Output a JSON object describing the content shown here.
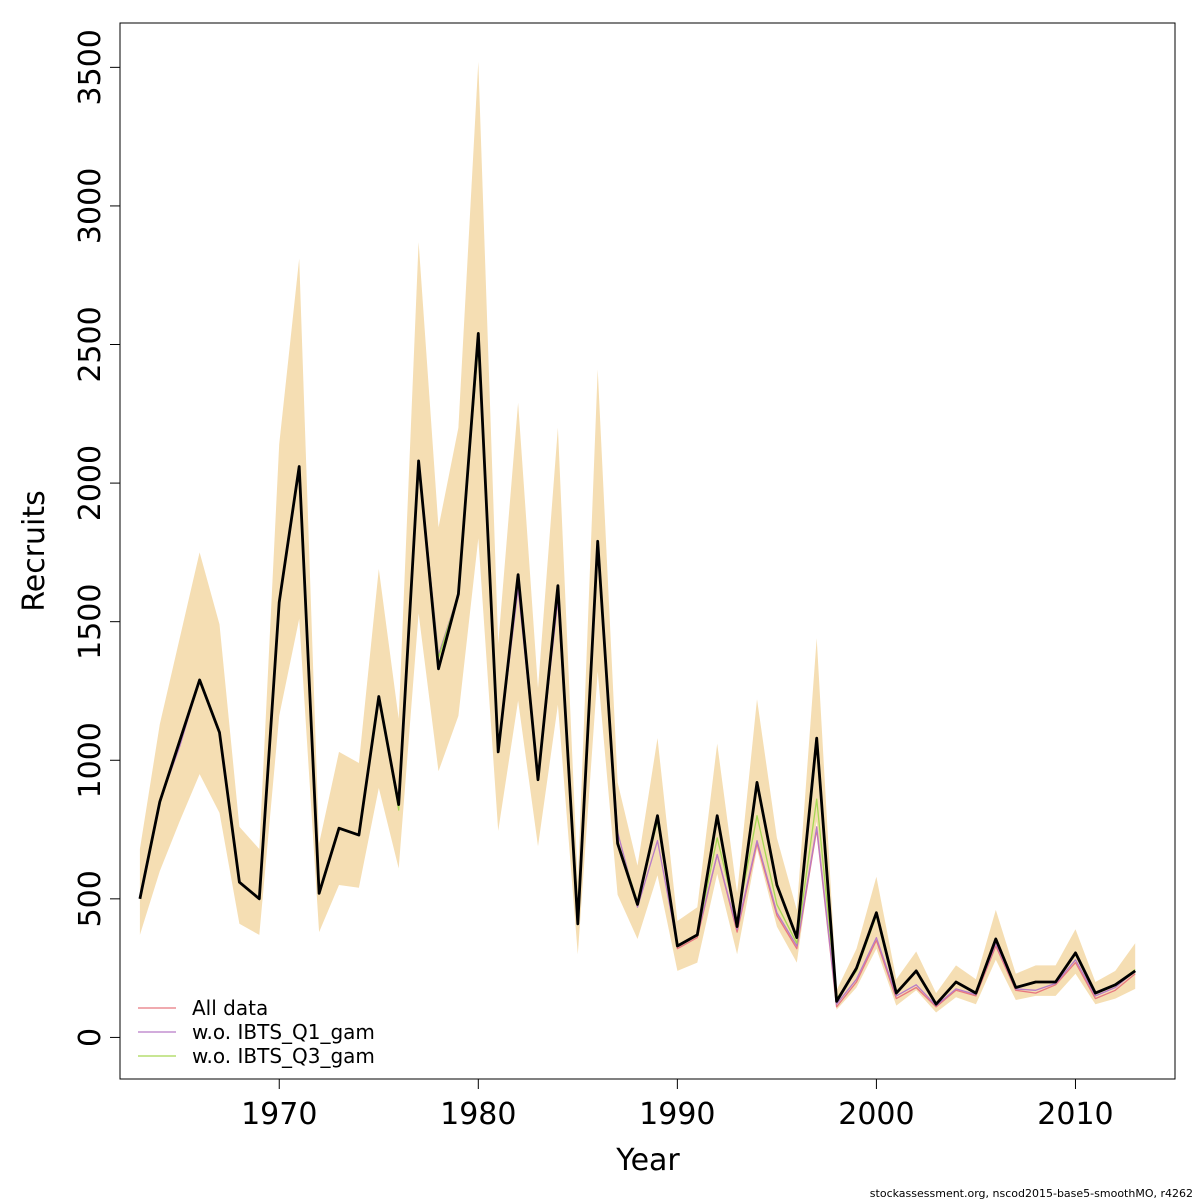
{
  "chart_data": {
    "type": "line",
    "xlabel": "Year",
    "ylabel": "Recruits",
    "xlim": [
      1962,
      2015
    ],
    "ylim": [
      -150,
      3660
    ],
    "x_ticks": [
      1970,
      1980,
      1990,
      2000,
      2010
    ],
    "y_ticks": [
      0,
      500,
      1000,
      1500,
      2000,
      2500,
      3000,
      3500
    ],
    "x": [
      1963,
      1964,
      1965,
      1966,
      1967,
      1968,
      1969,
      1970,
      1971,
      1972,
      1973,
      1974,
      1975,
      1976,
      1977,
      1978,
      1979,
      1980,
      1981,
      1982,
      1983,
      1984,
      1985,
      1986,
      1987,
      1988,
      1989,
      1990,
      1991,
      1992,
      1993,
      1994,
      1995,
      1996,
      1997,
      1998,
      1999,
      2000,
      2001,
      2002,
      2003,
      2004,
      2005,
      2006,
      2007,
      2008,
      2009,
      2010,
      2011,
      2012,
      2013
    ],
    "series": [
      {
        "name": "All data",
        "color": "#e8777f",
        "values": [
          500,
          850,
          1070,
          1290,
          1100,
          560,
          500,
          1570,
          2060,
          520,
          755,
          730,
          1230,
          840,
          2080,
          1330,
          1600,
          2540,
          1030,
          1670,
          930,
          1630,
          410,
          1790,
          710,
          480,
          800,
          320,
          360,
          660,
          380,
          700,
          440,
          320,
          750,
          110,
          200,
          350,
          140,
          180,
          110,
          170,
          150,
          330,
          170,
          160,
          190,
          270,
          140,
          170,
          230
        ]
      },
      {
        "name": "w.o. IBTS_Q1_gam",
        "color": "#b77bc7",
        "values": [
          500,
          850,
          1050,
          1290,
          1100,
          560,
          500,
          1570,
          2060,
          520,
          755,
          730,
          1230,
          840,
          2080,
          1380,
          1600,
          2540,
          1030,
          1620,
          930,
          1580,
          420,
          1760,
          740,
          470,
          710,
          330,
          370,
          660,
          390,
          710,
          450,
          330,
          760,
          120,
          210,
          360,
          150,
          190,
          115,
          175,
          155,
          340,
          175,
          170,
          195,
          280,
          150,
          180,
          240
        ]
      },
      {
        "name": "w.o. IBTS_Q3_gam",
        "color": "#a6d854",
        "values": [
          500,
          850,
          1070,
          1290,
          1100,
          560,
          500,
          1570,
          2060,
          520,
          755,
          730,
          1230,
          820,
          2080,
          1370,
          1600,
          2500,
          1030,
          1670,
          930,
          1620,
          450,
          1790,
          710,
          490,
          780,
          330,
          370,
          720,
          420,
          800,
          480,
          340,
          860,
          140,
          240,
          440,
          160,
          240,
          120,
          200,
          160,
          350,
          180,
          200,
          200,
          305,
          160,
          190,
          245
        ]
      },
      {
        "name": "",
        "color": "#000000",
        "values": [
          500,
          850,
          1070,
          1290,
          1100,
          560,
          500,
          1570,
          2060,
          520,
          755,
          730,
          1230,
          840,
          2080,
          1330,
          1600,
          2540,
          1030,
          1670,
          930,
          1630,
          410,
          1790,
          700,
          480,
          800,
          330,
          370,
          800,
          400,
          920,
          550,
          360,
          1080,
          130,
          250,
          450,
          160,
          240,
          120,
          200,
          160,
          355,
          180,
          200,
          200,
          305,
          160,
          190,
          240
        ]
      }
    ],
    "confidence_band": {
      "color": "#f5deb3",
      "lower": [
        370,
        600,
        780,
        950,
        810,
        410,
        370,
        1160,
        1510,
        380,
        550,
        540,
        900,
        610,
        1530,
        960,
        1160,
        1800,
        745,
        1215,
        690,
        1200,
        300,
        1320,
        515,
        355,
        585,
        240,
        270,
        590,
        300,
        680,
        400,
        270,
        780,
        100,
        180,
        320,
        115,
        170,
        90,
        145,
        120,
        280,
        135,
        150,
        150,
        230,
        120,
        140,
        175
      ],
      "upper": [
        680,
        1130,
        1440,
        1750,
        1490,
        760,
        680,
        2140,
        2810,
        700,
        1030,
        990,
        1690,
        1150,
        2870,
        1840,
        2200,
        3520,
        1420,
        2290,
        1260,
        2200,
        560,
        2410,
        920,
        620,
        1080,
        420,
        470,
        1060,
        520,
        1220,
        720,
        460,
        1440,
        170,
        320,
        580,
        210,
        310,
        160,
        260,
        210,
        460,
        230,
        260,
        260,
        390,
        200,
        240,
        340
      ]
    },
    "legend": {
      "position": "bottom-left",
      "entries": [
        "All data",
        "w.o. IBTS_Q1_gam",
        "w.o. IBTS_Q3_gam"
      ]
    },
    "footer": "stockassessment.org, nscod2015-base5-smoothMO, r4262"
  }
}
